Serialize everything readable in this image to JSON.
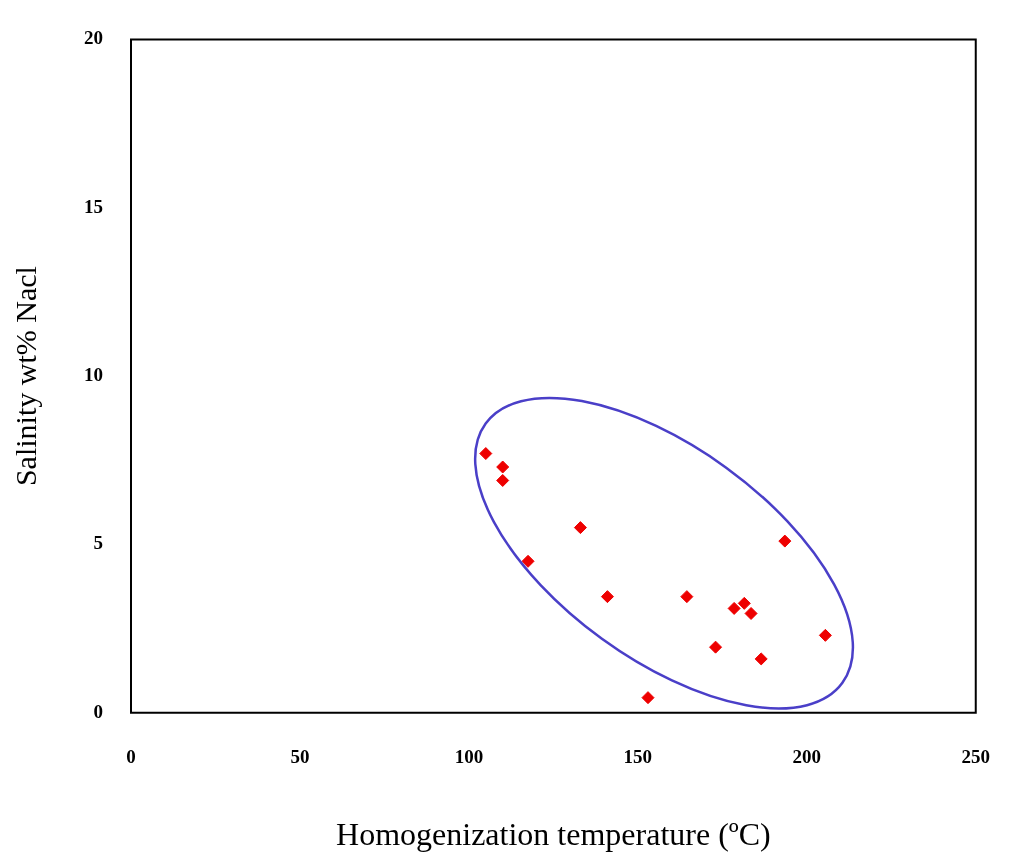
{
  "chart_data": {
    "type": "scatter",
    "xlabel": "Homogenization temperature (ºC)",
    "ylabel": "Salinity wt% Nacl",
    "x": [
      105,
      110,
      110,
      117.5,
      133,
      141,
      153,
      164.5,
      173,
      178.5,
      181.5,
      183.5,
      186.5,
      193.5,
      205.5
    ],
    "series": [
      {
        "color": "#ee0000",
        "values": [
          7.7,
          7.3,
          6.9,
          4.5,
          5.5,
          3.45,
          0.45,
          3.45,
          1.95,
          3.1,
          3.25,
          2.95,
          1.6,
          5.1,
          2.3
        ]
      }
    ],
    "xlim": [
      0,
      250
    ],
    "xticks": [
      0,
      50,
      100,
      150,
      200,
      250
    ],
    "ylim": [
      0,
      20
    ],
    "yticks": [
      0,
      5,
      10,
      15,
      20
    ],
    "grid": false,
    "legend": false,
    "marker": "diamond"
  }
}
